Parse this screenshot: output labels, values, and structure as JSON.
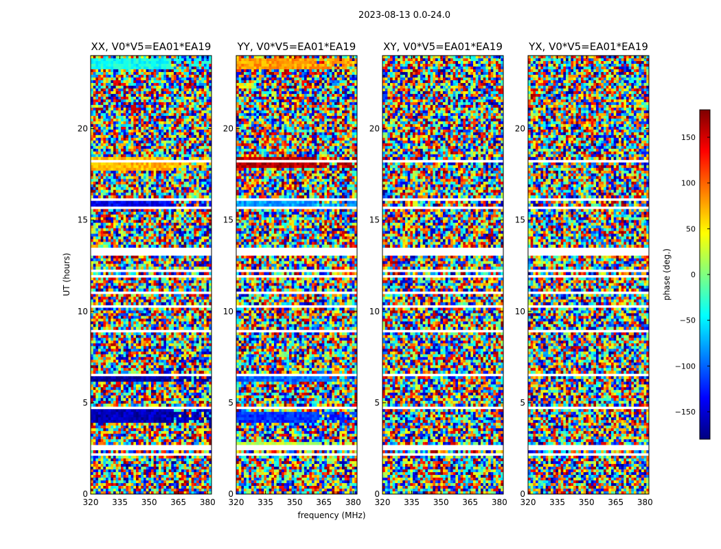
{
  "figure": {
    "suptitle": "2023-08-13 0.0-24.0"
  },
  "chart_data": {
    "type": "heatmap",
    "suptitle": "2023-08-13 0.0-24.0",
    "xlabel": "frequency (MHz)",
    "ylabel": "UT (hours)",
    "xlim": [
      320,
      382
    ],
    "ylim": [
      0,
      24
    ],
    "x_ticks": [
      320,
      335,
      350,
      365,
      380
    ],
    "y_ticks": [
      0,
      5,
      10,
      15,
      20
    ],
    "colormap": "jet",
    "colorbar": {
      "label": "phase (deg.)",
      "range": [
        -180,
        180
      ],
      "ticks": [
        -150,
        -100,
        -50,
        0,
        50,
        100,
        150
      ],
      "tick_labels": [
        "−150",
        "−100",
        "−50",
        "0",
        "50",
        "100",
        "150"
      ]
    },
    "panels": [
      {
        "title": "XX, V0*V5=EA01*EA19",
        "coherent_bands": [
          {
            "t": [
              23.3,
              23.9
            ],
            "phase": -40
          },
          {
            "t": [
              15.7,
              16.2
            ],
            "phase": -140
          },
          {
            "t": [
              17.7,
              18.4
            ],
            "phase": 70
          },
          {
            "t": [
              6.1,
              6.5
            ],
            "phase": -170
          },
          {
            "t": [
              3.9,
              4.6
            ],
            "phase": -160
          },
          {
            "t": [
              2.4,
              2.7
            ],
            "phase": -60
          }
        ]
      },
      {
        "title": "YY, V0*V5=EA01*EA19",
        "coherent_bands": [
          {
            "t": [
              23.3,
              23.9
            ],
            "phase": 80
          },
          {
            "t": [
              17.8,
              18.4
            ],
            "phase": 160
          },
          {
            "t": [
              15.7,
              16.2
            ],
            "phase": -80
          },
          {
            "t": [
              6.1,
              6.5
            ],
            "phase": -100
          },
          {
            "t": [
              3.9,
              4.5
            ],
            "phase": -120
          },
          {
            "t": [
              2.5,
              2.8
            ],
            "phase": 20
          }
        ]
      },
      {
        "title": "XY, V0*V5=EA01*EA19",
        "coherent_bands": []
      },
      {
        "title": "YX, V0*V5=EA01*EA19",
        "coherent_bands": []
      }
    ],
    "grid": false,
    "legend": "none"
  },
  "colors": {
    "flagged": "#ffffff",
    "axes": "#000000"
  }
}
